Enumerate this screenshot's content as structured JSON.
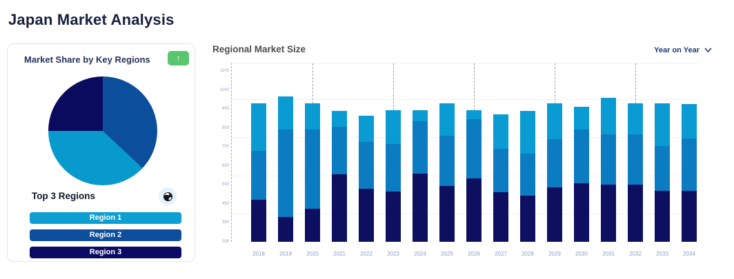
{
  "page": {
    "title": "Japan Market Analysis"
  },
  "left_card": {
    "title": "Market Share by Key Regions",
    "trend_button": {
      "icon": "arrow-up",
      "glyph": "↑",
      "color": "#57c66f"
    },
    "top_regions_title": "Top 3 Regions",
    "region_buttons": [
      {
        "label": "Region 1",
        "color": "#0d9ed2"
      },
      {
        "label": "Region 2",
        "color": "#0d4f9c"
      },
      {
        "label": "Region 3",
        "color": "#0a0a64"
      }
    ]
  },
  "right_panel": {
    "title": "Regional Market Size",
    "dropdown": {
      "label": "Year on Year",
      "icon": "chevron-down"
    }
  },
  "colors": {
    "navy": "#0d0f60",
    "medium_blue": "#0c7cc2",
    "light_blue": "#099bd1",
    "pie_blue": "#0b4f9c",
    "pie_cyan": "#0899cd",
    "pie_navy": "#0a0a5e"
  },
  "chart_data": [
    {
      "type": "pie",
      "title": "Market Share by Key Regions",
      "slices_clockwise_from_top": [
        {
          "name": "blue-slice",
          "color": "#0b4f9c",
          "percent": 37
        },
        {
          "name": "cyan-slice",
          "color": "#0899cd",
          "percent": 38
        },
        {
          "name": "navy-slice",
          "color": "#0a0a5e",
          "percent": 25
        }
      ],
      "legend": "none"
    },
    {
      "type": "bar",
      "stacked": true,
      "title": "Regional Market Size",
      "categories": [
        "2018",
        "2019",
        "2020",
        "2021",
        "2022",
        "2023",
        "2024",
        "2025",
        "2026",
        "2027",
        "2028",
        "2029",
        "2030",
        "2031",
        "2032",
        "2033",
        "2034"
      ],
      "baseline": 200,
      "note": "bars rise from axis baseline 200; series values are stacked deltas above the baseline",
      "series": [
        {
          "name": "bottom-segment-navy",
          "color": "#0d0f60",
          "values": [
            220,
            130,
            175,
            355,
            280,
            265,
            360,
            295,
            335,
            260,
            245,
            285,
            310,
            300,
            300,
            270,
            270
          ]
        },
        {
          "name": "middle-segment-blue",
          "color": "#0c7cc2",
          "values": [
            260,
            460,
            415,
            250,
            245,
            250,
            275,
            265,
            310,
            230,
            220,
            255,
            280,
            265,
            265,
            235,
            275
          ]
        },
        {
          "name": "top-segment-cyan",
          "color": "#099bd1",
          "values": [
            250,
            175,
            140,
            85,
            140,
            180,
            60,
            170,
            50,
            180,
            225,
            190,
            120,
            195,
            165,
            225,
            180
          ]
        }
      ],
      "ylim": [
        200,
        1140
      ],
      "yticks": [
        200,
        300,
        400,
        500,
        600,
        700,
        800,
        900,
        1000,
        1100
      ],
      "gridlines_at": [
        350,
        550,
        750,
        950
      ],
      "dashed_guide_years": [
        "2020",
        "2023",
        "2026",
        "2029",
        "2032"
      ],
      "grid": "faint horizontal",
      "legend_position": "none"
    }
  ]
}
